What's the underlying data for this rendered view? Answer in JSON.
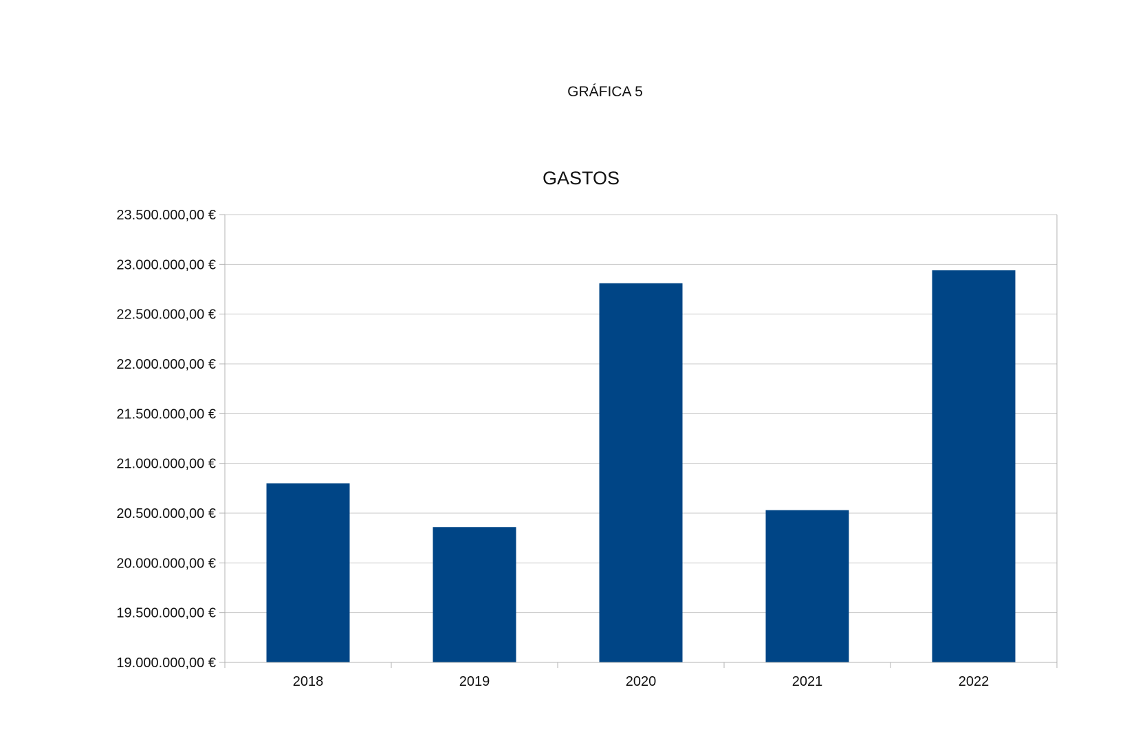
{
  "page": {
    "figure_label": "GRÁFICA 5"
  },
  "chart_data": {
    "type": "bar",
    "title": "GASTOS",
    "xlabel": "",
    "ylabel": "",
    "categories": [
      "2018",
      "2019",
      "2020",
      "2021",
      "2022"
    ],
    "values": [
      20800000,
      20360000,
      22810000,
      20530000,
      22940000
    ],
    "ylim": [
      19000000,
      23500000
    ],
    "y_ticks": [
      19000000,
      19500000,
      20000000,
      20500000,
      21000000,
      21500000,
      22000000,
      22500000,
      23000000,
      23500000
    ],
    "y_tick_labels": [
      "19.000.000,00 €",
      "19.500.000,00 €",
      "20.000.000,00 €",
      "20.500.000,00 €",
      "21.000.000,00 €",
      "21.500.000,00 €",
      "22.000.000,00 €",
      "22.500.000,00 €",
      "23.000.000,00 €",
      "23.500.000,00 €"
    ],
    "grid": true,
    "legend": "none",
    "colors": {
      "bar": "#004586",
      "grid": "#c8c8c8",
      "axis": "#b3b3b3"
    }
  }
}
